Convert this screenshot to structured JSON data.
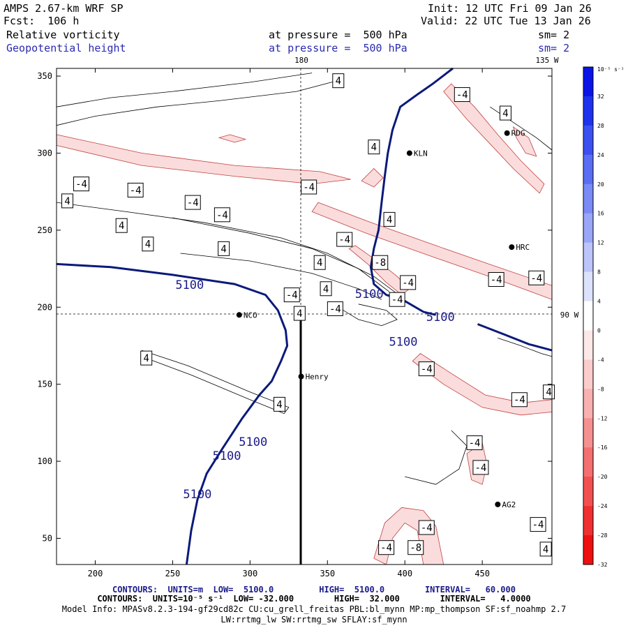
{
  "header": {
    "model": "AMPS 2.67-km WRF SP",
    "init": "Init: 12 UTC Fri 09 Jan 26",
    "fcst": "Fcst:  106 h",
    "valid": "Valid: 22 UTC Tue 13 Jan 26",
    "field1": "Relative vorticity",
    "field1_level": "at pressure =  500 hPa",
    "field1_sm": "sm= 2",
    "field2": "Geopotential height",
    "field2_level": "at pressure =  500 hPa",
    "field2_sm": "sm= 2"
  },
  "map_labels": {
    "lon_180": "180",
    "lon_135w": "135 W",
    "lon_90w": "90 W"
  },
  "stations": [
    {
      "name": "NCO",
      "x": 293,
      "y": 195
    },
    {
      "name": "Henry",
      "x": 333,
      "y": 155
    },
    {
      "name": "KLN",
      "x": 403,
      "y": 300
    },
    {
      "name": "RDG",
      "x": 466,
      "y": 313
    },
    {
      "name": "HRC",
      "x": 469,
      "y": 239
    },
    {
      "name": "AG2",
      "x": 460,
      "y": 72
    }
  ],
  "colorbar": {
    "unit": "10⁻⁵ s⁻¹",
    "ticks": [
      "32",
      "28",
      "24",
      "20",
      "16",
      "12",
      "8",
      "4",
      "0",
      "-4",
      "-8",
      "-12",
      "-16",
      "-20",
      "-24",
      "-28",
      "-32"
    ],
    "colors": [
      "#0a14e6",
      "#1e32ee",
      "#3c50f2",
      "#5a6ef4",
      "#7a8af6",
      "#9aa6f8",
      "#bcc4fa",
      "#dde2fc",
      "#ffffff",
      "#fde8e8",
      "#fbcccc",
      "#f8b0b0",
      "#f69090",
      "#f47070",
      "#f25050",
      "#f03030",
      "#ee1010"
    ]
  },
  "chart_data": {
    "type": "contour",
    "xlim": [
      175,
      495
    ],
    "ylim": [
      33,
      355
    ],
    "x_ticks": [
      200,
      250,
      300,
      350,
      400,
      450
    ],
    "y_ticks": [
      50,
      100,
      150,
      200,
      250,
      300,
      350
    ],
    "height_label": "5100",
    "height_contour_labels": [
      {
        "x": 261,
        "y": 212
      },
      {
        "x": 399,
        "y": 175
      },
      {
        "x": 377,
        "y": 206
      },
      {
        "x": 423,
        "y": 191
      },
      {
        "x": 302,
        "y": 110
      },
      {
        "x": 285,
        "y": 101
      },
      {
        "x": 266,
        "y": 76
      }
    ],
    "vorticity_labels": [
      {
        "text": "4",
        "x": 182,
        "y": 269
      },
      {
        "text": "4",
        "x": 217,
        "y": 253
      },
      {
        "text": "4",
        "x": 234,
        "y": 241
      },
      {
        "text": "4",
        "x": 283,
        "y": 238
      },
      {
        "text": "4",
        "x": 345,
        "y": 229
      },
      {
        "text": "4",
        "x": 349,
        "y": 212
      },
      {
        "text": "4",
        "x": 332,
        "y": 196
      },
      {
        "text": "4",
        "x": 233,
        "y": 167
      },
      {
        "text": "4",
        "x": 319,
        "y": 137
      },
      {
        "text": "4",
        "x": 357,
        "y": 347
      },
      {
        "text": "4",
        "x": 380,
        "y": 304
      },
      {
        "text": "4",
        "x": 390,
        "y": 257
      },
      {
        "text": "4",
        "x": 465,
        "y": 326
      },
      {
        "text": "4",
        "x": 493,
        "y": 145
      },
      {
        "text": "4",
        "x": 491,
        "y": 43
      },
      {
        "text": "-4",
        "x": 191,
        "y": 280
      },
      {
        "text": "-4",
        "x": 226,
        "y": 276
      },
      {
        "text": "-4",
        "x": 263,
        "y": 268
      },
      {
        "text": "-4",
        "x": 282,
        "y": 260
      },
      {
        "text": "-4",
        "x": 338,
        "y": 278
      },
      {
        "text": "-4",
        "x": 361,
        "y": 244
      },
      {
        "text": "-4",
        "x": 327,
        "y": 208
      },
      {
        "text": "-4",
        "x": 355,
        "y": 199
      },
      {
        "text": "-4",
        "x": 395,
        "y": 205
      },
      {
        "text": "-4",
        "x": 402,
        "y": 216
      },
      {
        "text": "-4",
        "x": 414,
        "y": 160
      },
      {
        "text": "-4",
        "x": 437,
        "y": 338
      },
      {
        "text": "-4",
        "x": 459,
        "y": 218
      },
      {
        "text": "-4",
        "x": 485,
        "y": 219
      },
      {
        "text": "-4",
        "x": 474,
        "y": 140
      },
      {
        "text": "-4",
        "x": 445,
        "y": 112
      },
      {
        "text": "-4",
        "x": 449,
        "y": 96
      },
      {
        "text": "-4",
        "x": 486,
        "y": 59
      },
      {
        "text": "-4",
        "x": 414,
        "y": 57
      },
      {
        "text": "-4",
        "x": 388,
        "y": 44
      },
      {
        "text": "-8",
        "x": 384,
        "y": 229
      },
      {
        "text": "-8",
        "x": 407,
        "y": 44
      }
    ]
  },
  "footer": {
    "line1": "CONTOURS:  UNITS=m  LOW=  5100.0         HIGH=  5100.0        INTERVAL=   60.000",
    "line2": "CONTOURS:  UNITS=10⁻⁵ s⁻¹  LOW= -32.000        HIGH=  32.000        INTERVAL=   4.0000",
    "line3": "Model Info: MPASv8.2.3-194-gf29cd82c CU:cu_grell_freitas PBL:bl_mynn MP:mp_thompson SF:sf_noahmp 2.7",
    "line4": "LW:rrtmg_lw SW:rrtmg_sw SFLAY:sf_mynn"
  }
}
